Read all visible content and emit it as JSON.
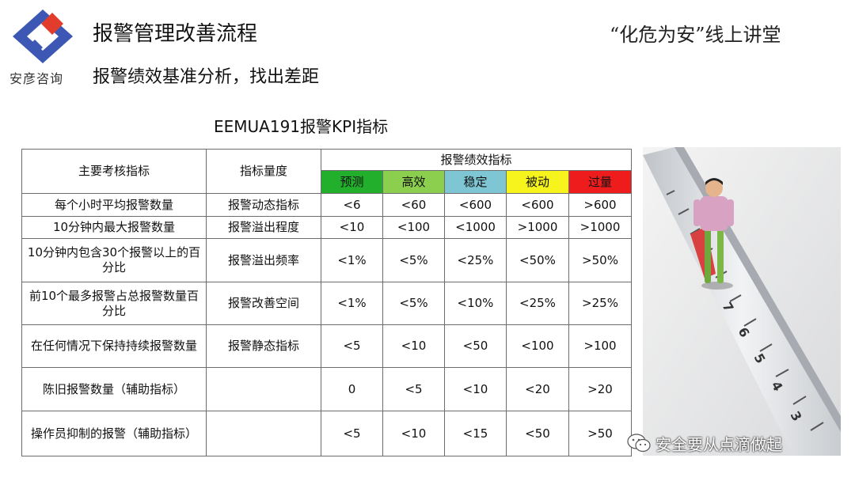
{
  "header": {
    "company": "安彦咨询",
    "title": "报警管理改善流程",
    "slogan": "“化危为安”线上讲堂",
    "subtitle": "报警绩效基准分析，找出差距",
    "table_title": "EEMUA191报警KPI指标"
  },
  "table": {
    "col_main": "主要考核指标",
    "col_measure": "指标量度",
    "col_group": "报警绩效指标",
    "levels": [
      "预测",
      "高效",
      "稳定",
      "被动",
      "过量"
    ],
    "level_colors": [
      "#22b02c",
      "#8ccf4f",
      "#7fc6d4",
      "#f6f41c",
      "#ee1c1c"
    ],
    "rows": [
      {
        "name": "每个小时平均报警数量",
        "measure": "报警动态指标",
        "values": [
          "<6",
          "<60",
          "<600",
          "<600",
          ">600"
        ]
      },
      {
        "name": "10分钟内最大报警数量",
        "measure": "报警溢出程度",
        "values": [
          "<10",
          "<100",
          "<1000",
          ">1000",
          ">1000"
        ]
      },
      {
        "name": "10分钟内包含30个报警以上的百分比",
        "measure": "报警溢出频率",
        "values": [
          "<1%",
          "<5%",
          "<25%",
          "<50%",
          ">50%"
        ]
      },
      {
        "name": "前10个最多报警占总报警数量百分比",
        "measure": "报警改善空间",
        "values": [
          "<1%",
          "<5%",
          "<10%",
          "<25%",
          ">25%"
        ]
      },
      {
        "name": "在任何情况下保持持续报警数量",
        "measure": "报警静态指标",
        "values": [
          "<5",
          "<10",
          "<50",
          "<100",
          ">100"
        ]
      },
      {
        "name": "陈旧报警数量（辅助指标）",
        "measure": "",
        "values": [
          "0",
          "<5",
          "<10",
          "<20",
          ">20"
        ]
      },
      {
        "name": "操作员抑制的报警（辅助指标）",
        "measure": "",
        "values": [
          "<5",
          "<10",
          "<15",
          "<50",
          ">50"
        ]
      }
    ]
  },
  "watermark": {
    "text": "安全要从点滴做起",
    "icon": "wechat-icon"
  }
}
